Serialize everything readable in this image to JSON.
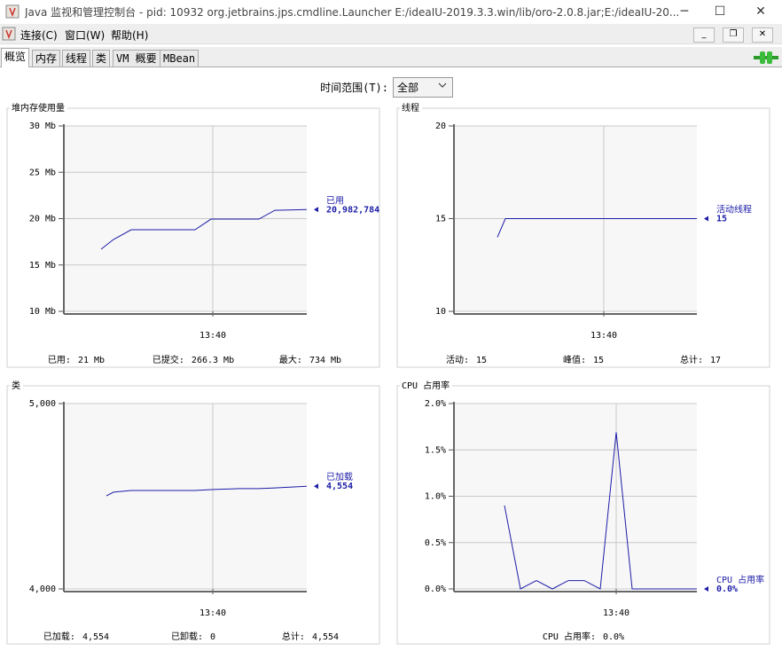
{
  "window": {
    "title": "Java 监视和管理控制台 - pid: 10932 org.jetbrains.jps.cmdline.Launcher E:/ideaIU-2019.3.3.win/lib/oro-2.0.8.jar;E:/ideaIU-20..."
  },
  "menu": [
    "连接(C)",
    "窗口(W)",
    "帮助(H)"
  ],
  "tabs": [
    "概览",
    "内存",
    "线程",
    "类",
    "VM 概要",
    "MBean"
  ],
  "time_range": {
    "label": "时间范围(T):",
    "value": "全部"
  },
  "chart_data": [
    {
      "type": "line",
      "title": "堆内存使用量",
      "x": [
        818.74,
        818.88,
        819.08,
        819.8,
        819.98,
        820.52,
        820.7,
        821.06
      ],
      "xlim": [
        818.32,
        821.06
      ],
      "xticks": [
        {
          "value": 820,
          "label": "13:40"
        }
      ],
      "ylim": [
        10,
        30
      ],
      "yticks": [
        {
          "value": 10,
          "label": "10 Mb"
        },
        {
          "value": 15,
          "label": "15 Mb"
        },
        {
          "value": 20,
          "label": "20 Mb"
        },
        {
          "value": 25,
          "label": "25 Mb"
        },
        {
          "value": 30,
          "label": "30 Mb"
        }
      ],
      "grid": true,
      "series": [
        {
          "name": "已用",
          "color": "#1c1ca8",
          "values": [
            16.7,
            17.75,
            18.8,
            18.8,
            19.95,
            19.95,
            20.9,
            20.98
          ],
          "current": "20,982,784"
        }
      ],
      "footer": [
        {
          "label": "已用:",
          "value": "21  Mb"
        },
        {
          "label": "已提交:",
          "value": "266.3  Mb"
        },
        {
          "label": "最大:",
          "value": "734  Mb"
        }
      ]
    },
    {
      "type": "line",
      "title": "线程",
      "x": [
        818.8,
        818.89,
        821.05
      ],
      "xlim": [
        818.31,
        821.05
      ],
      "xticks": [
        {
          "value": 820,
          "label": "13:40"
        }
      ],
      "ylim": [
        10,
        20
      ],
      "yticks": [
        10,
        15,
        20
      ],
      "grid": true,
      "series": [
        {
          "name": "活动线程",
          "color": "#1c1ca8",
          "values": [
            14,
            15,
            15
          ],
          "current": "15"
        }
      ],
      "footer": [
        {
          "label": "活动:",
          "value": "15"
        },
        {
          "label": "峰值:",
          "value": "15"
        },
        {
          "label": "总计:",
          "value": "17"
        }
      ]
    },
    {
      "type": "line",
      "title": "类",
      "x": [
        818.8,
        818.88,
        819.08,
        819.8,
        819.98,
        820.3,
        820.52,
        820.7,
        821.06
      ],
      "xlim": [
        818.32,
        821.06
      ],
      "xticks": [
        {
          "value": 820,
          "label": "13:40"
        }
      ],
      "ylim": [
        4000,
        5000
      ],
      "yticks": [
        {
          "value": 4000,
          "label": "4,000"
        },
        {
          "value": 5000,
          "label": "5,000"
        }
      ],
      "grid": true,
      "series": [
        {
          "name": "已加载",
          "color": "#1c1ca8",
          "values": [
            4502,
            4522,
            4531,
            4531,
            4536,
            4541,
            4541,
            4545,
            4554
          ],
          "current": "4,554"
        }
      ],
      "footer": [
        {
          "label": "已加载:",
          "value": "4,554"
        },
        {
          "label": "已卸载:",
          "value": "0"
        },
        {
          "label": "总计:",
          "value": "4,554"
        }
      ]
    },
    {
      "type": "line",
      "title": "CPU 占用率",
      "x": [
        818.74,
        818.92,
        819.1,
        819.28,
        819.46,
        819.64,
        819.82,
        820.0,
        820.18,
        820.91
      ],
      "xlim": [
        818.17,
        820.91
      ],
      "xticks": [
        {
          "value": 820,
          "label": "13:40"
        }
      ],
      "ylim": [
        0,
        2
      ],
      "yticks": [
        {
          "value": 0,
          "label": "0.0%"
        },
        {
          "value": 0.5,
          "label": "0.5%"
        },
        {
          "value": 1,
          "label": "1.0%"
        },
        {
          "value": 1.5,
          "label": "1.5%"
        },
        {
          "value": 2,
          "label": "2.0%"
        }
      ],
      "grid": true,
      "series": [
        {
          "name": "CPU 占用率",
          "color": "#1c1ca8",
          "values": [
            0.9,
            0,
            0.09,
            0,
            0.09,
            0.09,
            0,
            1.69,
            0,
            0
          ],
          "current": "0.0%"
        }
      ],
      "footer": [
        {
          "label": "CPU 占用率:",
          "value": "0.0%"
        }
      ]
    }
  ]
}
